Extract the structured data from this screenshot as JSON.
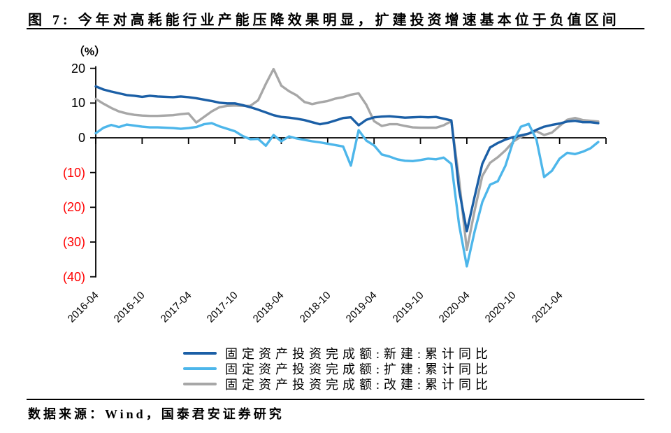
{
  "page": {
    "title": "图 7:  今年对高耗能行业产能压降效果明显，扩建投资增速基本位于负值区间",
    "footer": "数据来源：Wind，国泰君安证券研究"
  },
  "chart_data": {
    "type": "line",
    "title": "图 7: 今年对高耗能行业产能压降效果明显，扩建投资增速基本位于负值区间",
    "unit_label": "（%）",
    "grid": false,
    "legend_position": "bottom",
    "y_axis": {
      "min": -40,
      "max": 20,
      "tick_step": 10,
      "negative_label_color": "#ff0000",
      "positive_label_color": "#000000",
      "ticks": [
        {
          "label": "20",
          "value": 20,
          "color": "#000000"
        },
        {
          "label": "10",
          "value": 10,
          "color": "#000000"
        },
        {
          "label": "0",
          "value": 0,
          "color": "#000000"
        },
        {
          "label": "(10)",
          "value": -10,
          "color": "#ff0000"
        },
        {
          "label": "(20)",
          "value": -20,
          "color": "#ff0000"
        },
        {
          "label": "(30)",
          "value": -30,
          "color": "#ff0000"
        },
        {
          "label": "(40)",
          "value": -40,
          "color": "#ff0000"
        }
      ]
    },
    "x_ticks": [
      {
        "label": "2016-04",
        "month_index": 0
      },
      {
        "label": "2016-10",
        "month_index": 6
      },
      {
        "label": "2017-04",
        "month_index": 12
      },
      {
        "label": "2017-10",
        "month_index": 18
      },
      {
        "label": "2018-04",
        "month_index": 24
      },
      {
        "label": "2018-10",
        "month_index": 30
      },
      {
        "label": "2019-04",
        "month_index": 36
      },
      {
        "label": "2019-10",
        "month_index": 42
      },
      {
        "label": "2020-04",
        "month_index": 48
      },
      {
        "label": "2020-10",
        "month_index": 54
      },
      {
        "label": "2021-04",
        "month_index": 60
      }
    ],
    "x": [
      "2016-04",
      "2016-05",
      "2016-06",
      "2016-07",
      "2016-08",
      "2016-09",
      "2016-10",
      "2016-11",
      "2016-12",
      "2017-01",
      "2017-02",
      "2017-03",
      "2017-04",
      "2017-05",
      "2017-06",
      "2017-07",
      "2017-08",
      "2017-09",
      "2017-10",
      "2017-11",
      "2017-12",
      "2018-01",
      "2018-02",
      "2018-03",
      "2018-04",
      "2018-05",
      "2018-06",
      "2018-07",
      "2018-08",
      "2018-09",
      "2018-10",
      "2018-11",
      "2018-12",
      "2019-01",
      "2019-02",
      "2019-03",
      "2019-04",
      "2019-05",
      "2019-06",
      "2019-07",
      "2019-08",
      "2019-09",
      "2019-10",
      "2019-11",
      "2019-12",
      "2020-01",
      "2020-02",
      "2020-03",
      "2020-04",
      "2020-05",
      "2020-06",
      "2020-07",
      "2020-08",
      "2020-09",
      "2020-10",
      "2020-11",
      "2020-12",
      "2021-01",
      "2021-02",
      "2021-03",
      "2021-04",
      "2021-05",
      "2021-06",
      "2021-07",
      "2021-08",
      "2021-09"
    ],
    "series": [
      {
        "name": "固定资产投资完成额:新建:累计同比",
        "key": "new-construction",
        "color": "#1b5fa6",
        "values": [
          14.8,
          13.9,
          13.3,
          12.8,
          12.3,
          12.1,
          11.8,
          12.1,
          11.9,
          11.8,
          11.7,
          11.9,
          11.7,
          11.4,
          11.0,
          10.6,
          10.1,
          9.9,
          9.9,
          9.4,
          8.8,
          8.1,
          7.3,
          6.5,
          6.0,
          5.8,
          5.5,
          5.1,
          4.5,
          3.9,
          4.3,
          5.0,
          5.7,
          5.9,
          3.6,
          5.2,
          5.9,
          6.1,
          6.2,
          6.0,
          5.8,
          5.9,
          6.0,
          5.9,
          6.0,
          5.5,
          5.0,
          -15.0,
          -26.9,
          -17.0,
          -7.5,
          -2.8,
          -1.5,
          -0.5,
          0.2,
          0.7,
          1.2,
          2.3,
          3.2,
          3.7,
          4.1,
          4.7,
          4.9,
          4.5,
          4.5,
          4.2
        ]
      },
      {
        "name": "固定资产投资完成额:扩建:累计同比",
        "key": "expansion",
        "color": "#4db6ea",
        "values": [
          1.3,
          2.9,
          3.7,
          3.1,
          3.8,
          3.5,
          3.2,
          3.0,
          3.0,
          2.9,
          2.8,
          2.6,
          2.8,
          3.1,
          3.9,
          4.2,
          3.3,
          2.6,
          1.9,
          0.5,
          -0.4,
          -0.3,
          -2.3,
          0.8,
          -1.0,
          0.4,
          -0.2,
          -0.6,
          -1.0,
          -1.3,
          -1.7,
          -2.1,
          -2.5,
          -8.0,
          2.2,
          -0.8,
          -2.2,
          -4.8,
          -5.4,
          -6.2,
          -6.6,
          -6.7,
          -6.4,
          -6.0,
          -6.2,
          -5.7,
          -7.5,
          -25.0,
          -37.0,
          -27.0,
          -18.5,
          -13.5,
          -12.5,
          -8.0,
          -1.0,
          3.2,
          4.0,
          -0.5,
          -11.3,
          -9.5,
          -6.0,
          -4.3,
          -4.7,
          -4.0,
          -3.0,
          -1.2
        ]
      },
      {
        "name": "固定资产投资完成额:改建:累计同比",
        "key": "renovation",
        "color": "#a7a7a7",
        "values": [
          11.2,
          9.8,
          8.6,
          7.6,
          7.0,
          6.6,
          6.4,
          6.3,
          6.3,
          6.4,
          6.5,
          6.8,
          7.0,
          4.4,
          6.0,
          7.6,
          8.8,
          9.2,
          9.3,
          9.2,
          9.2,
          10.8,
          15.5,
          19.8,
          15.0,
          13.4,
          12.2,
          10.3,
          9.7,
          10.2,
          10.6,
          11.3,
          11.7,
          12.4,
          12.8,
          9.5,
          4.8,
          3.4,
          3.9,
          3.9,
          3.4,
          3.0,
          2.9,
          2.9,
          2.9,
          3.6,
          4.8,
          -12.0,
          -32.3,
          -21.0,
          -11.0,
          -7.2,
          -5.6,
          -3.6,
          -1.1,
          0.3,
          1.2,
          1.9,
          0.8,
          1.5,
          3.4,
          5.2,
          5.7,
          5.1,
          4.9,
          4.7
        ]
      }
    ]
  }
}
